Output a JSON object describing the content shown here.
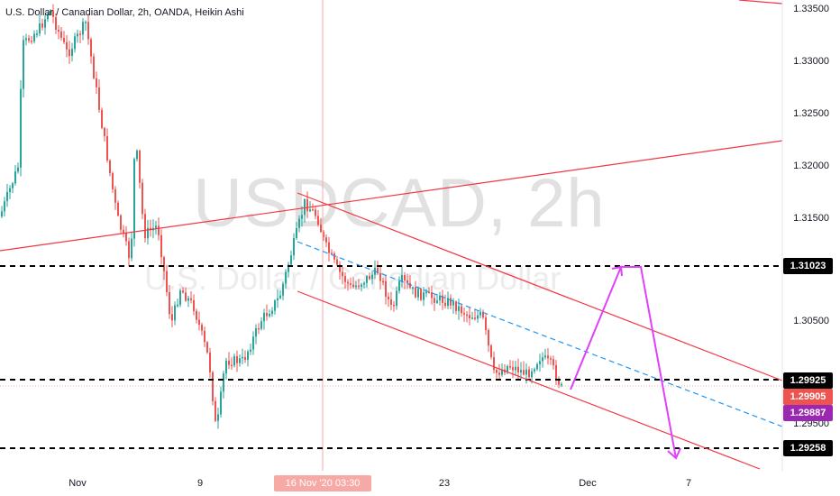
{
  "header": {
    "title": "U.S. Dollar / Canadian Dollar, 2h, OANDA, Heikin Ashi"
  },
  "watermark": {
    "symbol": "USDCAD, 2h",
    "description": "U.S. Dollar / Canadian Dollar"
  },
  "price_axis": {
    "ticks": [
      "1.33500",
      "1.33000",
      "1.32500",
      "1.32000",
      "1.31500",
      "1.30500",
      "1.29500"
    ]
  },
  "time_axis": {
    "ticks": [
      "Nov",
      "9",
      "23",
      "Dec",
      "7"
    ]
  },
  "crosshair": {
    "time_label": "16 Nov '20   03:30"
  },
  "price_tags": {
    "level_1": "1.31023",
    "level_2": "1.29925",
    "last_price": "1.29905",
    "crosshair_price": "1.29887",
    "level_3": "1.29258"
  },
  "colors": {
    "bull": "#26a69a",
    "bear": "#ef5350",
    "channel": "#f23645",
    "projection": "#e040fb",
    "midline": "#2196f3",
    "level": "#000000",
    "crosshair_price": "#9c27b0"
  },
  "chart_data": {
    "type": "candlestick",
    "style": "Heikin Ashi",
    "symbol": "USDCAD",
    "interval": "2h",
    "source": "OANDA",
    "y_range": [
      1.2905,
      1.3362
    ],
    "horizontal_levels": [
      1.31023,
      1.29925,
      1.29258
    ],
    "last_price": 1.29905,
    "crosshair_price": 1.29887
  }
}
